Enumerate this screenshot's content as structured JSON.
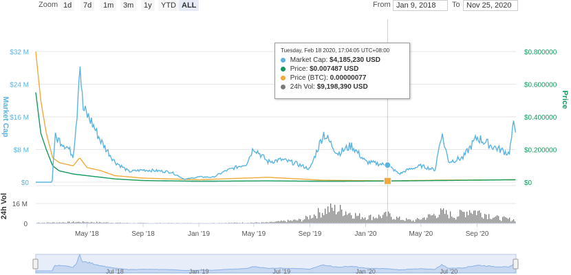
{
  "toolbar": {
    "zoom_label": "Zoom",
    "zoom_buttons": [
      "1d",
      "7d",
      "1m",
      "3m",
      "1y",
      "YTD",
      "ALL"
    ],
    "active_zoom": "ALL",
    "from_label": "From",
    "from_value": "Jan 9, 2018",
    "to_label": "To",
    "to_value": "Nov 25, 2020"
  },
  "tooltip": {
    "time": "Tuesday, Feb 18 2020, 17:04:05 UTC+08:00",
    "rows": [
      {
        "label": "Market Cap:",
        "value": "$4,185,230 USD"
      },
      {
        "label": "Price:",
        "value": "$0.007487 USD"
      },
      {
        "label": "Price (BTC):",
        "value": "0.00000077"
      },
      {
        "label": "24h Vol:",
        "value": "$9,198,390 USD"
      }
    ]
  },
  "colors": {
    "market_cap": "#5ab4e0",
    "price": "#119a5b",
    "price_btc": "#f2a93b",
    "volume": "#7a7a7a",
    "navigator": "#8ab2e6"
  },
  "chart_data": {
    "type": "line",
    "x_range": [
      "2018-01-09",
      "2020-11-25"
    ],
    "x_ticks": [
      "May '18",
      "Sep '18",
      "Jan '19",
      "May '19",
      "Sep '19",
      "Jan '20",
      "May '20",
      "Sep '20"
    ],
    "x_tick_dates": [
      "2018-05-01",
      "2018-09-01",
      "2019-01-01",
      "2019-05-01",
      "2019-09-01",
      "2020-01-01",
      "2020-05-01",
      "2020-09-01"
    ],
    "left_axis": {
      "label": "Market Cap",
      "ticks": [
        "$0",
        "$8 M",
        "$16 M",
        "$24 M",
        "$32 M"
      ],
      "range": [
        0,
        32000000
      ]
    },
    "right_axis": {
      "label": "Price",
      "ticks": [
        "$0",
        "$0.200000",
        "$0.400000",
        "$0.600000",
        "$0.800000"
      ],
      "range": [
        0,
        0.8
      ]
    },
    "volume_axis": {
      "label": "24h Vol",
      "ticks": [
        "0",
        "16 M"
      ],
      "range": [
        0,
        16000000
      ]
    },
    "navigator_ticks": [
      "Jul '18",
      "Jan '19",
      "Jul '19",
      "Jan '20",
      "Jul '20"
    ],
    "navigator_tick_dates": [
      "2018-07-01",
      "2019-01-01",
      "2019-07-01",
      "2020-01-01",
      "2020-07-01"
    ],
    "series": [
      {
        "name": "Market Cap",
        "axis": "left",
        "points": [
          [
            "2018-01-09",
            0
          ],
          [
            "2018-02-14",
            0
          ],
          [
            "2018-02-15",
            3000000
          ],
          [
            "2018-02-20",
            11000000
          ],
          [
            "2018-03-05",
            10000000
          ],
          [
            "2018-03-20",
            8500000
          ],
          [
            "2018-04-01",
            6500000
          ],
          [
            "2018-04-10",
            18000000
          ],
          [
            "2018-04-15",
            31000000
          ],
          [
            "2018-04-22",
            18000000
          ],
          [
            "2018-05-10",
            15000000
          ],
          [
            "2018-06-01",
            10000000
          ],
          [
            "2018-07-01",
            5000000
          ],
          [
            "2018-08-01",
            2600000
          ],
          [
            "2018-09-01",
            3000000
          ],
          [
            "2018-10-01",
            2800000
          ],
          [
            "2018-11-01",
            2500000
          ],
          [
            "2018-12-01",
            700000
          ],
          [
            "2019-01-01",
            1300000
          ],
          [
            "2019-02-01",
            1200000
          ],
          [
            "2019-03-01",
            2800000
          ],
          [
            "2019-04-15",
            4500000
          ],
          [
            "2019-05-01",
            8500000
          ],
          [
            "2019-06-01",
            5000000
          ],
          [
            "2019-07-01",
            5500000
          ],
          [
            "2019-08-01",
            4600000
          ],
          [
            "2019-09-01",
            3200000
          ],
          [
            "2019-10-01",
            12000000
          ],
          [
            "2019-11-01",
            7000000
          ],
          [
            "2019-12-01",
            9000000
          ],
          [
            "2020-01-01",
            5000000
          ],
          [
            "2020-02-18",
            4185230
          ],
          [
            "2020-03-15",
            2000000
          ],
          [
            "2020-04-01",
            3000000
          ],
          [
            "2020-05-01",
            4000000
          ],
          [
            "2020-06-01",
            3000000
          ],
          [
            "2020-06-15",
            12000000
          ],
          [
            "2020-07-01",
            5000000
          ],
          [
            "2020-08-01",
            6000000
          ],
          [
            "2020-09-01",
            11000000
          ],
          [
            "2020-10-01",
            9000000
          ],
          [
            "2020-11-10",
            7000000
          ],
          [
            "2020-11-20",
            14000000
          ],
          [
            "2020-11-25",
            13500000
          ]
        ]
      },
      {
        "name": "Price",
        "axis": "right",
        "points": [
          [
            "2018-01-09",
            0.55
          ],
          [
            "2018-01-20",
            0.3
          ],
          [
            "2018-02-01",
            0.2
          ],
          [
            "2018-02-15",
            0.1
          ],
          [
            "2018-03-01",
            0.07
          ],
          [
            "2018-04-01",
            0.05
          ],
          [
            "2018-05-01",
            0.04
          ],
          [
            "2018-06-01",
            0.03
          ],
          [
            "2018-07-01",
            0.02
          ],
          [
            "2018-09-01",
            0.01
          ],
          [
            "2019-01-01",
            0.006
          ],
          [
            "2019-06-01",
            0.008
          ],
          [
            "2019-10-01",
            0.006
          ],
          [
            "2020-02-18",
            0.007487
          ],
          [
            "2020-06-01",
            0.01
          ],
          [
            "2020-11-25",
            0.015
          ]
        ]
      },
      {
        "name": "Price (BTC)",
        "axis": "right",
        "points": [
          [
            "2018-01-09",
            0.8
          ],
          [
            "2018-01-20",
            0.5
          ],
          [
            "2018-02-01",
            0.3
          ],
          [
            "2018-02-15",
            0.15
          ],
          [
            "2018-03-01",
            0.12
          ],
          [
            "2018-04-01",
            0.1
          ],
          [
            "2018-04-15",
            0.15
          ],
          [
            "2018-05-01",
            0.09
          ],
          [
            "2018-06-01",
            0.07
          ],
          [
            "2018-07-01",
            0.04
          ],
          [
            "2018-09-01",
            0.025
          ],
          [
            "2019-01-01",
            0.015
          ],
          [
            "2019-06-01",
            0.03
          ],
          [
            "2019-10-01",
            0.012
          ],
          [
            "2020-02-18",
            0.008
          ],
          [
            "2020-06-01",
            0.012
          ],
          [
            "2020-11-25",
            0.015
          ]
        ]
      },
      {
        "name": "24h Vol",
        "axis": "volume",
        "points": [
          [
            "2018-02-01",
            900000
          ],
          [
            "2018-04-15",
            1600000
          ],
          [
            "2018-08-01",
            500000
          ],
          [
            "2019-01-01",
            400000
          ],
          [
            "2019-06-01",
            1100000
          ],
          [
            "2019-08-15",
            4000000
          ],
          [
            "2019-09-15",
            11000000
          ],
          [
            "2019-10-15",
            16000000
          ],
          [
            "2019-11-15",
            14000000
          ],
          [
            "2019-12-15",
            8000000
          ],
          [
            "2020-01-15",
            7000000
          ],
          [
            "2020-02-18",
            9198390
          ],
          [
            "2020-03-15",
            5000000
          ],
          [
            "2020-04-15",
            3000000
          ],
          [
            "2020-06-15",
            12000000
          ],
          [
            "2020-07-15",
            8000000
          ],
          [
            "2020-08-15",
            15000000
          ],
          [
            "2020-09-15",
            11000000
          ],
          [
            "2020-10-15",
            6000000
          ],
          [
            "2020-11-20",
            4000000
          ]
        ]
      }
    ],
    "tooltip_date": "2020-02-18"
  }
}
